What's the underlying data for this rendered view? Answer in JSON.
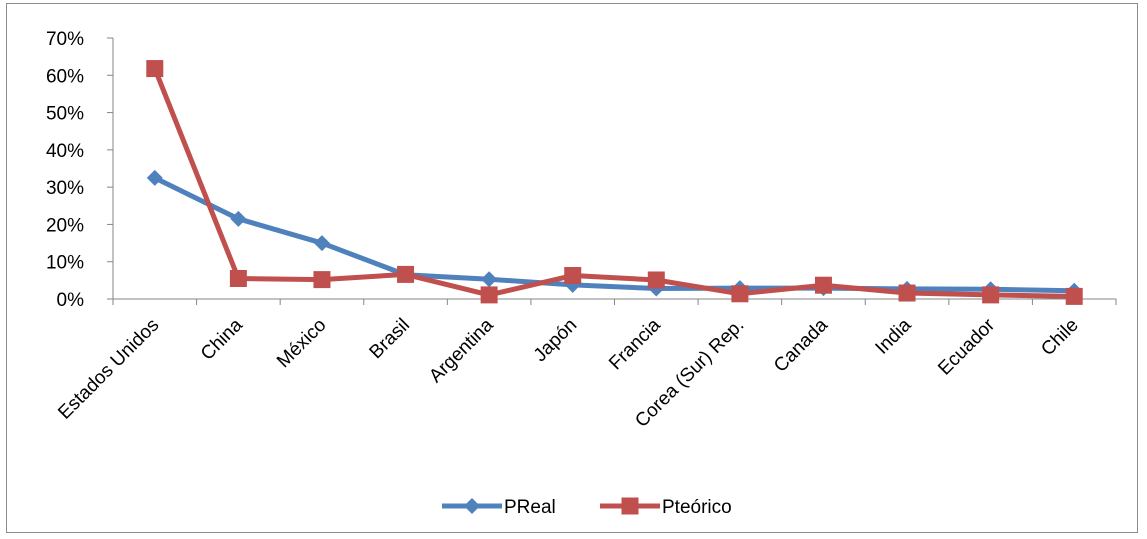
{
  "chart_data": {
    "type": "line",
    "title": "",
    "xlabel": "",
    "ylabel": "",
    "categories": [
      "Estados Unidos",
      "China",
      "México",
      "Brasil",
      "Argentina",
      "Japón",
      "Francia",
      "Corea (Sur) Rep.",
      "Canada",
      "India",
      "Ecuador",
      "Chile"
    ],
    "y_ticks": [
      "0%",
      "10%",
      "20%",
      "30%",
      "40%",
      "50%",
      "60%",
      "70%"
    ],
    "ylim": [
      0,
      0.7
    ],
    "grid": false,
    "legend_position": "bottom",
    "series": [
      {
        "name": "PReal",
        "color": "#4f81bd",
        "marker": "diamond",
        "values": [
          0.325,
          0.215,
          0.15,
          0.065,
          0.053,
          0.038,
          0.028,
          0.029,
          0.029,
          0.027,
          0.026,
          0.022
        ]
      },
      {
        "name": "Pteórico",
        "color": "#c0504d",
        "marker": "square",
        "values": [
          0.618,
          0.055,
          0.052,
          0.066,
          0.011,
          0.063,
          0.051,
          0.014,
          0.037,
          0.016,
          0.011,
          0.007
        ]
      }
    ]
  }
}
